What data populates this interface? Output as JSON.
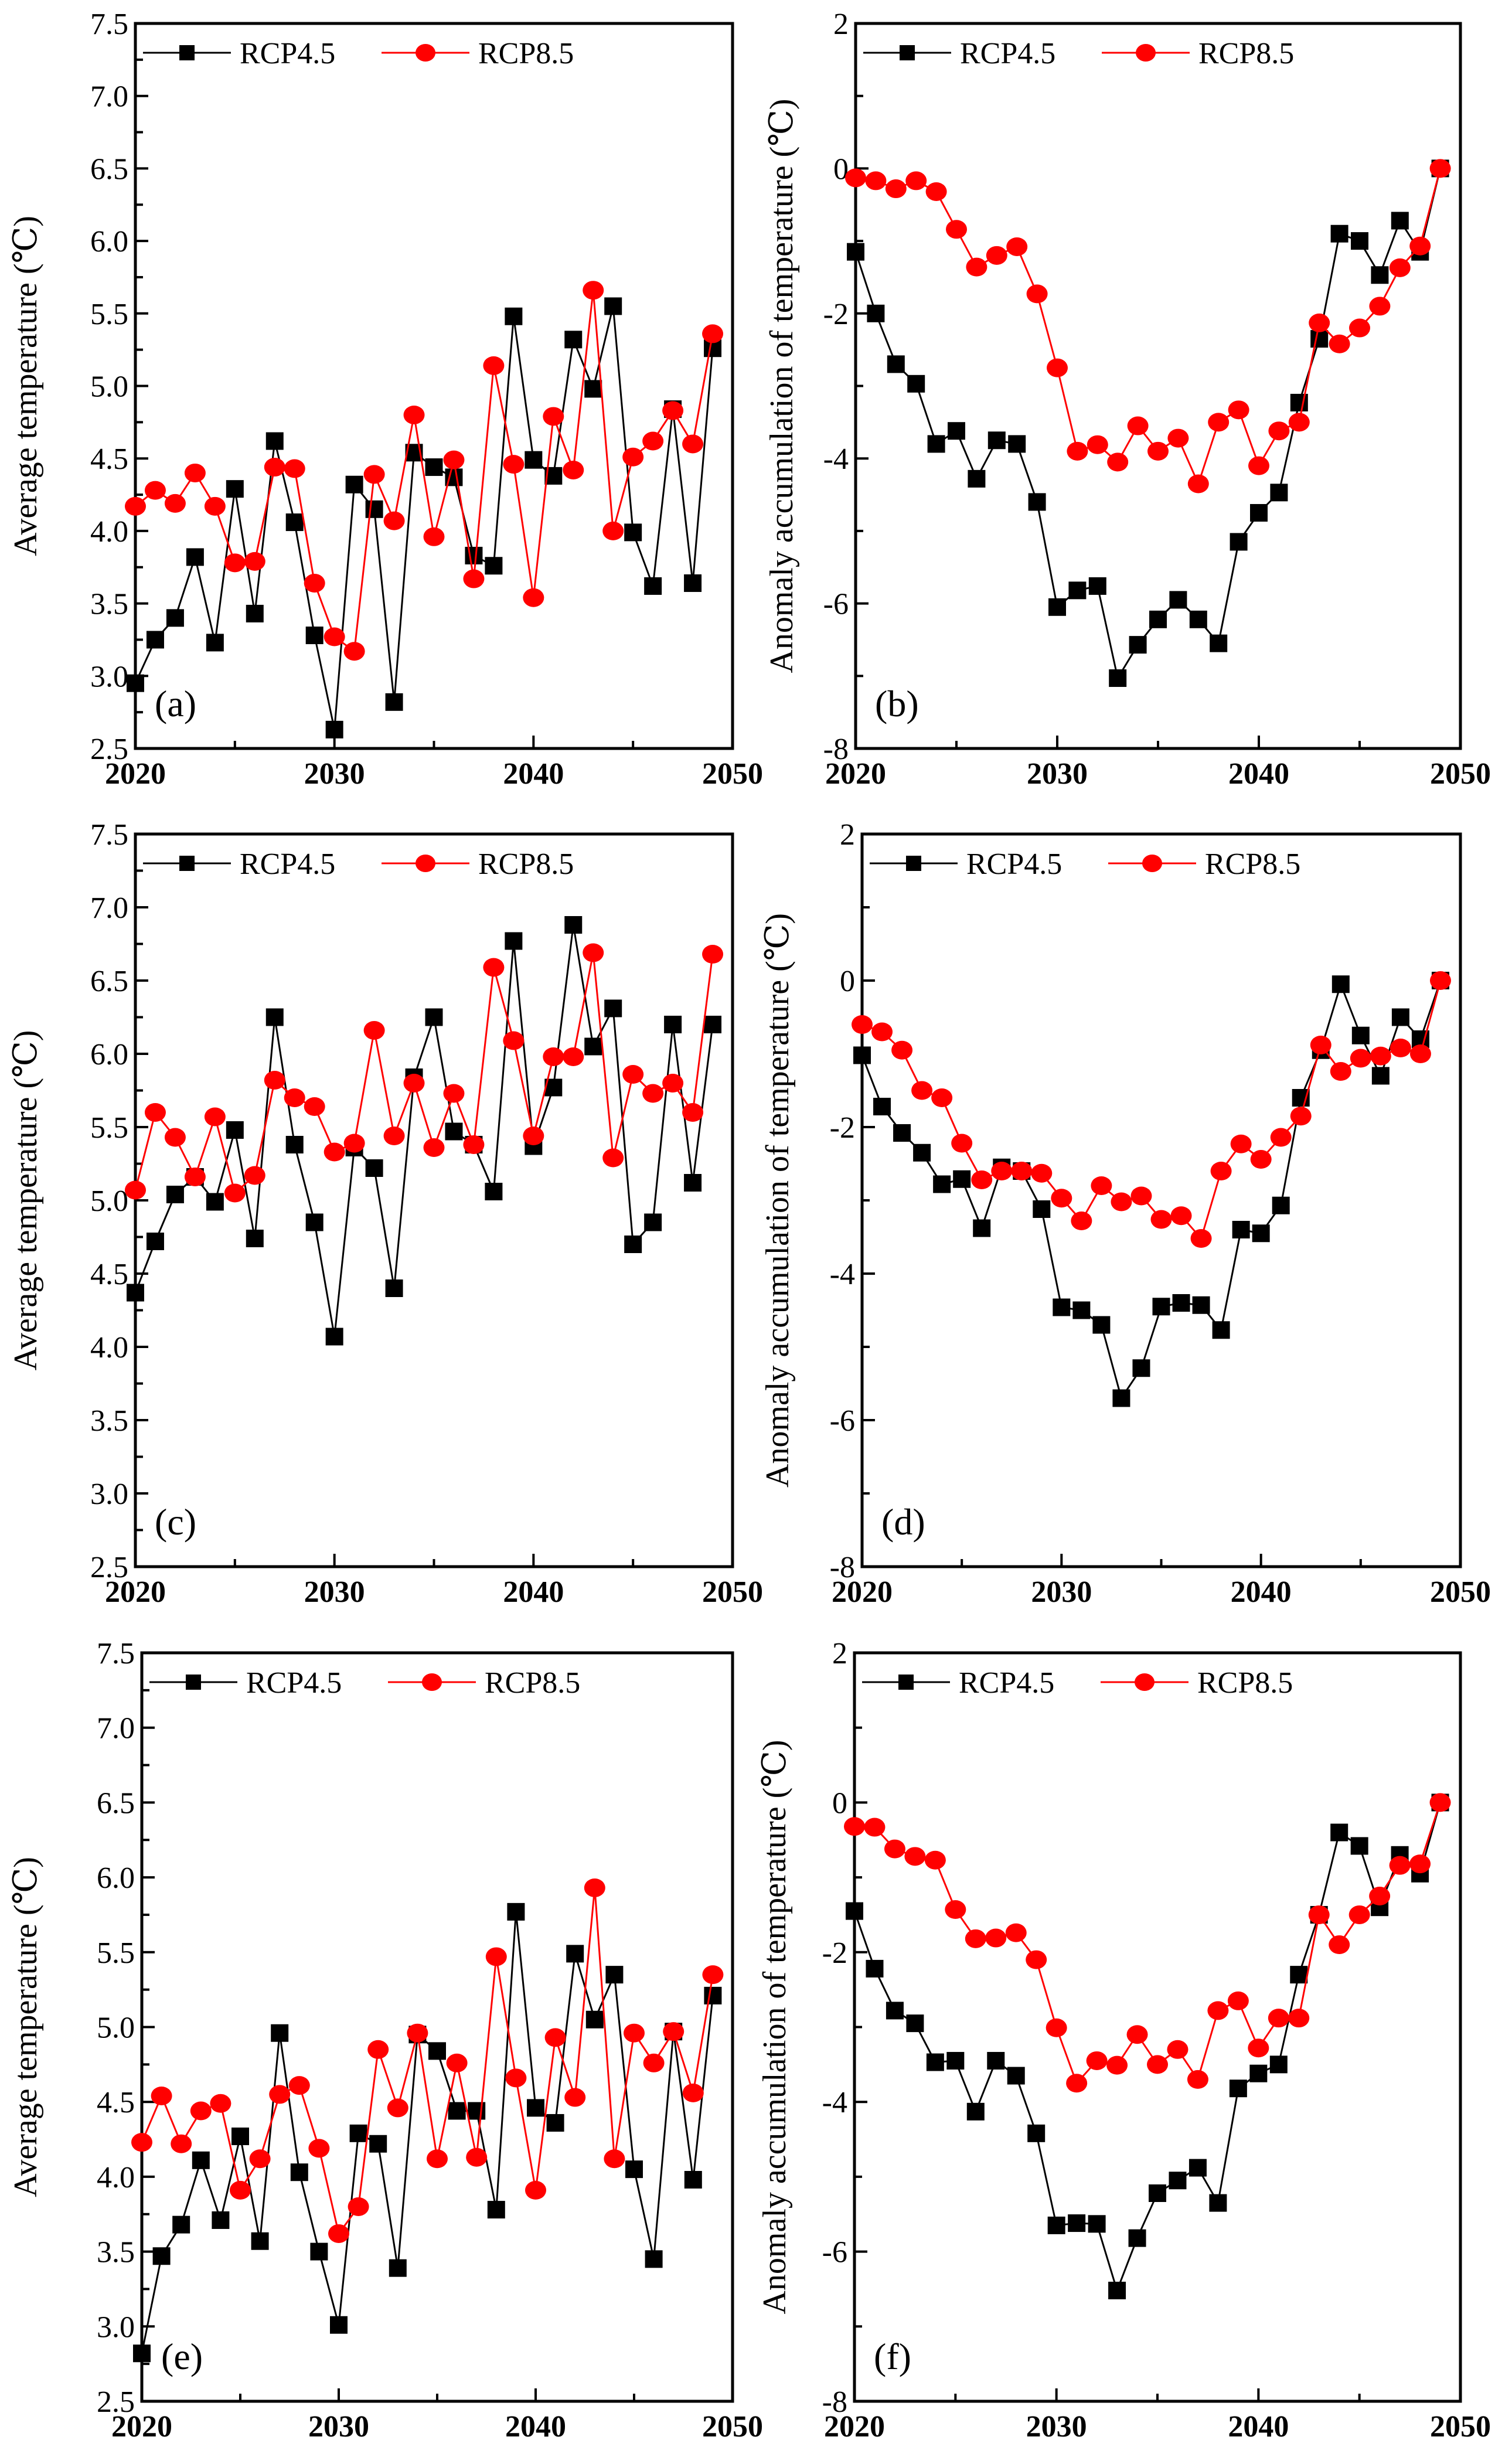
{
  "colors": {
    "rcp45": "#000000",
    "rcp85": "#ff0000"
  },
  "chart_data": [
    {
      "type": "line",
      "panel_label": "(a)",
      "xlabel": "",
      "ylabel": "Average temperature (℃)",
      "xlim": [
        2020,
        2050
      ],
      "ylim": [
        2.5,
        7.5
      ],
      "xticks": [
        "2020",
        "2030",
        "2040",
        "2050"
      ],
      "yticks": [
        "2.5",
        "3.0",
        "3.5",
        "4.0",
        "4.5",
        "5.0",
        "5.5",
        "6.0",
        "6.5",
        "7.0",
        "7.5"
      ],
      "legend": "top-left",
      "x": [
        2020,
        2021,
        2022,
        2023,
        2024,
        2025,
        2026,
        2027,
        2028,
        2029,
        2030,
        2031,
        2032,
        2033,
        2034,
        2035,
        2036,
        2037,
        2038,
        2039,
        2040,
        2041,
        2042,
        2043,
        2044,
        2045,
        2046,
        2047,
        2048,
        2049
      ],
      "series": [
        {
          "name": "RCP4.5",
          "values": [
            2.95,
            3.25,
            3.4,
            3.82,
            3.23,
            4.29,
            3.43,
            4.62,
            4.06,
            3.28,
            2.63,
            4.32,
            4.15,
            2.82,
            4.54,
            4.44,
            4.37,
            3.83,
            3.76,
            5.48,
            4.49,
            4.38,
            5.32,
            4.98,
            5.55,
            3.99,
            3.62,
            4.84,
            3.64,
            5.26
          ]
        },
        {
          "name": "RCP8.5",
          "values": [
            4.17,
            4.28,
            4.19,
            4.4,
            4.17,
            3.78,
            3.79,
            4.44,
            4.43,
            3.64,
            3.27,
            3.17,
            4.39,
            4.07,
            4.8,
            3.96,
            4.49,
            3.67,
            5.14,
            4.46,
            3.54,
            4.79,
            4.42,
            5.66,
            4.0,
            4.51,
            4.62,
            4.83,
            4.6,
            5.36
          ]
        }
      ]
    },
    {
      "type": "line",
      "panel_label": "(b)",
      "xlabel": "",
      "ylabel": "Anomaly accumulation of temperature (℃)",
      "xlim": [
        2020,
        2050
      ],
      "ylim": [
        -8,
        2
      ],
      "xticks": [
        "2020",
        "2030",
        "2040",
        "2050"
      ],
      "yticks": [
        "-8",
        "-6",
        "-4",
        "-2",
        "0",
        "2"
      ],
      "legend": "top-left",
      "x": [
        2020,
        2021,
        2022,
        2023,
        2024,
        2025,
        2026,
        2027,
        2028,
        2029,
        2030,
        2031,
        2032,
        2033,
        2034,
        2035,
        2036,
        2037,
        2038,
        2039,
        2040,
        2041,
        2042,
        2043,
        2044,
        2045,
        2046,
        2047,
        2048,
        2049
      ],
      "series": [
        {
          "name": "RCP4.5",
          "values": [
            -1.15,
            -2.0,
            -2.7,
            -2.97,
            -3.8,
            -3.62,
            -4.28,
            -3.75,
            -3.8,
            -4.6,
            -6.05,
            -5.82,
            -5.76,
            -7.03,
            -6.57,
            -6.22,
            -5.95,
            -6.22,
            -6.55,
            -5.15,
            -4.75,
            -4.47,
            -3.23,
            -2.35,
            -0.9,
            -1.0,
            -1.47,
            -0.72,
            -1.15,
            0
          ]
        },
        {
          "name": "RCP8.5",
          "values": [
            -0.13,
            -0.17,
            -0.28,
            -0.17,
            -0.32,
            -0.84,
            -1.36,
            -1.2,
            -1.08,
            -1.73,
            -2.75,
            -3.9,
            -3.81,
            -4.05,
            -3.55,
            -3.9,
            -3.72,
            -4.35,
            -3.5,
            -3.33,
            -4.1,
            -3.62,
            -3.5,
            -2.13,
            -2.42,
            -2.2,
            -1.9,
            -1.37,
            -1.07,
            0
          ]
        }
      ]
    },
    {
      "type": "line",
      "panel_label": "(c)",
      "xlabel": "",
      "ylabel": "Average temperature (℃)",
      "xlim": [
        2020,
        2050
      ],
      "ylim": [
        2.5,
        7.5
      ],
      "xticks": [
        "2020",
        "2030",
        "2040",
        "2050"
      ],
      "yticks": [
        "2.5",
        "3.0",
        "3.5",
        "4.0",
        "4.5",
        "5.0",
        "5.5",
        "6.0",
        "6.5",
        "7.0",
        "7.5"
      ],
      "legend": "top-left",
      "x": [
        2020,
        2021,
        2022,
        2023,
        2024,
        2025,
        2026,
        2027,
        2028,
        2029,
        2030,
        2031,
        2032,
        2033,
        2034,
        2035,
        2036,
        2037,
        2038,
        2039,
        2040,
        2041,
        2042,
        2043,
        2044,
        2045,
        2046,
        2047,
        2048,
        2049
      ],
      "series": [
        {
          "name": "RCP4.5",
          "values": [
            4.37,
            4.72,
            5.04,
            5.16,
            4.99,
            5.48,
            4.74,
            6.25,
            5.38,
            4.85,
            4.07,
            5.36,
            5.22,
            4.4,
            5.84,
            6.25,
            5.47,
            5.38,
            5.06,
            6.77,
            5.37,
            5.77,
            6.88,
            6.05,
            6.31,
            4.7,
            4.85,
            6.2,
            5.12,
            6.2
          ]
        },
        {
          "name": "RCP8.5",
          "values": [
            5.07,
            5.6,
            5.43,
            5.16,
            5.57,
            5.05,
            5.17,
            5.82,
            5.7,
            5.64,
            5.33,
            5.39,
            6.16,
            5.44,
            5.8,
            5.36,
            5.73,
            5.38,
            6.59,
            6.09,
            5.44,
            5.98,
            5.98,
            6.69,
            5.29,
            5.86,
            5.73,
            5.8,
            5.6,
            6.68
          ]
        }
      ]
    },
    {
      "type": "line",
      "panel_label": "(d)",
      "xlabel": "",
      "ylabel": "Anomaly accumulation of temperature (℃)",
      "xlim": [
        2020,
        2050
      ],
      "ylim": [
        -8,
        2
      ],
      "xticks": [
        "2020",
        "2030",
        "2040",
        "2050"
      ],
      "yticks": [
        "-8",
        "-6",
        "-4",
        "-2",
        "0",
        "2"
      ],
      "legend": "top-left",
      "x": [
        2020,
        2021,
        2022,
        2023,
        2024,
        2025,
        2026,
        2027,
        2028,
        2029,
        2030,
        2031,
        2032,
        2033,
        2034,
        2035,
        2036,
        2037,
        2038,
        2039,
        2040,
        2041,
        2042,
        2043,
        2044,
        2045,
        2046,
        2047,
        2048,
        2049
      ],
      "series": [
        {
          "name": "RCP4.5",
          "values": [
            -1.02,
            -1.72,
            -2.08,
            -2.35,
            -2.78,
            -2.71,
            -3.38,
            -2.55,
            -2.6,
            -3.12,
            -4.46,
            -4.5,
            -4.7,
            -5.7,
            -5.29,
            -4.45,
            -4.4,
            -4.43,
            -4.77,
            -3.4,
            -3.45,
            -3.07,
            -1.6,
            -0.95,
            -0.05,
            -0.75,
            -1.3,
            -0.5,
            -0.8,
            0
          ]
        },
        {
          "name": "RCP8.5",
          "values": [
            -0.6,
            -0.7,
            -0.95,
            -1.5,
            -1.6,
            -2.22,
            -2.72,
            -2.6,
            -2.6,
            -2.63,
            -2.97,
            -3.28,
            -2.8,
            -3.02,
            -2.94,
            -3.26,
            -3.21,
            -3.52,
            -2.6,
            -2.23,
            -2.44,
            -2.14,
            -1.85,
            -0.88,
            -1.24,
            -1.06,
            -1.03,
            -0.92,
            -1.0,
            0
          ]
        }
      ]
    },
    {
      "type": "line",
      "panel_label": "(e)",
      "xlabel": "",
      "ylabel": "Average temperature (℃)",
      "xlim": [
        2020,
        2050
      ],
      "ylim": [
        2.5,
        7.5
      ],
      "xticks": [
        "2020",
        "2030",
        "2040",
        "2050"
      ],
      "yticks": [
        "2.5",
        "3.0",
        "3.5",
        "4.0",
        "4.5",
        "5.0",
        "5.5",
        "6.0",
        "6.5",
        "7.0",
        "7.5"
      ],
      "legend": "top-left",
      "x": [
        2020,
        2021,
        2022,
        2023,
        2024,
        2025,
        2026,
        2027,
        2028,
        2029,
        2030,
        2031,
        2032,
        2033,
        2034,
        2035,
        2036,
        2037,
        2038,
        2039,
        2040,
        2041,
        2042,
        2043,
        2044,
        2045,
        2046,
        2047,
        2048,
        2049
      ],
      "series": [
        {
          "name": "RCP4.5",
          "values": [
            2.82,
            3.47,
            3.68,
            4.11,
            3.71,
            4.27,
            3.57,
            4.96,
            4.03,
            3.5,
            3.01,
            4.29,
            4.22,
            3.39,
            4.95,
            4.84,
            4.44,
            4.44,
            3.78,
            5.77,
            4.46,
            4.36,
            5.49,
            5.05,
            5.35,
            4.05,
            3.45,
            4.97,
            3.98,
            5.21
          ]
        },
        {
          "name": "RCP8.5",
          "values": [
            4.23,
            4.54,
            4.22,
            4.44,
            4.49,
            3.91,
            4.12,
            4.55,
            4.61,
            4.19,
            3.62,
            3.8,
            4.85,
            4.46,
            4.96,
            4.12,
            4.76,
            4.13,
            5.47,
            4.66,
            3.91,
            4.93,
            4.53,
            5.93,
            4.12,
            4.96,
            4.76,
            4.97,
            4.56,
            5.35
          ]
        }
      ]
    },
    {
      "type": "line",
      "panel_label": "(f)",
      "xlabel": "",
      "ylabel": "Anomaly accumulation of temperature (℃)",
      "xlim": [
        2020,
        2050
      ],
      "ylim": [
        -8,
        2
      ],
      "xticks": [
        "2020",
        "2030",
        "2040",
        "2050"
      ],
      "yticks": [
        "-8",
        "-6",
        "-4",
        "-2",
        "0",
        "2"
      ],
      "legend": "top-left",
      "x": [
        2020,
        2021,
        2022,
        2023,
        2024,
        2025,
        2026,
        2027,
        2028,
        2029,
        2030,
        2031,
        2032,
        2033,
        2034,
        2035,
        2036,
        2037,
        2038,
        2039,
        2040,
        2041,
        2042,
        2043,
        2044,
        2045,
        2046,
        2047,
        2048,
        2049
      ],
      "series": [
        {
          "name": "RCP4.5",
          "values": [
            -1.45,
            -2.22,
            -2.78,
            -2.95,
            -3.47,
            -3.45,
            -4.13,
            -3.45,
            -3.65,
            -4.42,
            -5.65,
            -5.62,
            -5.63,
            -6.52,
            -5.82,
            -5.22,
            -5.05,
            -4.88,
            -5.35,
            -3.82,
            -3.62,
            -3.5,
            -2.3,
            -1.5,
            -0.4,
            -0.58,
            -1.4,
            -0.7,
            -0.95,
            0
          ]
        },
        {
          "name": "RCP8.5",
          "values": [
            -0.32,
            -0.33,
            -0.62,
            -0.72,
            -0.77,
            -1.43,
            -1.82,
            -1.81,
            -1.74,
            -2.1,
            -3.01,
            -3.75,
            -3.45,
            -3.51,
            -3.1,
            -3.5,
            -3.3,
            -3.7,
            -2.78,
            -2.65,
            -3.28,
            -2.88,
            -2.88,
            -1.5,
            -1.9,
            -1.5,
            -1.25,
            -0.84,
            -0.82,
            0
          ]
        }
      ]
    }
  ]
}
